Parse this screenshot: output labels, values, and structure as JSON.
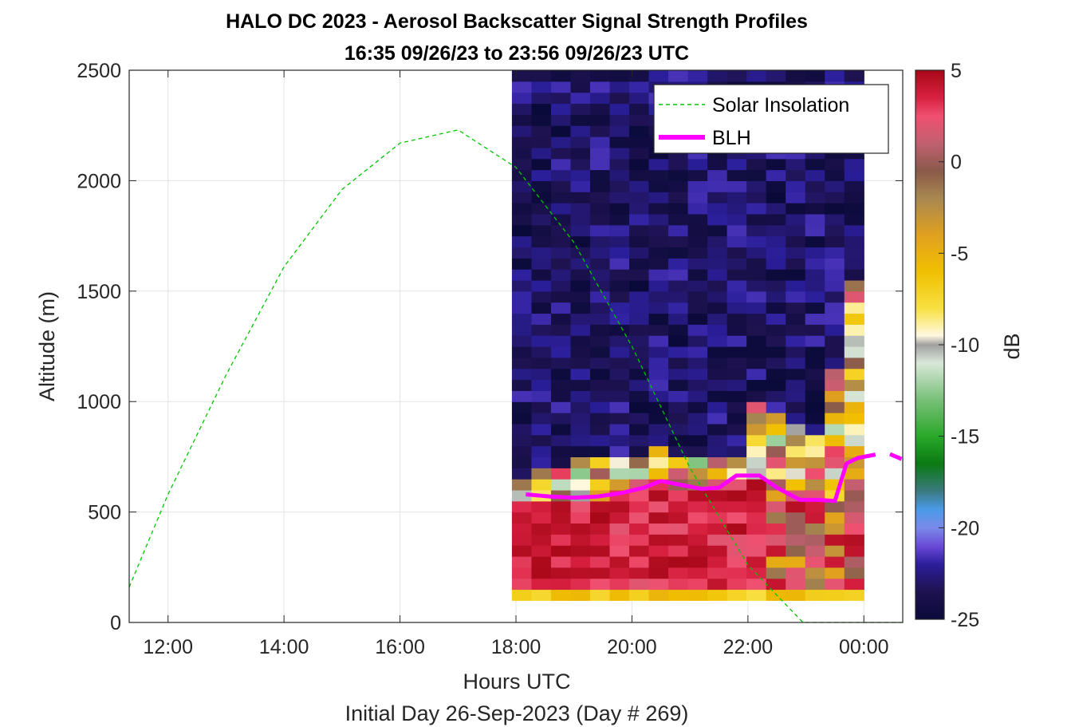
{
  "chart_data": {
    "type": "heatmap",
    "title": "HALO DC 2023 - Aerosol Backscatter Signal Strength Profiles",
    "subtitle": "16:35 09/26/23 to 23:56 09/26/23  UTC",
    "xlabel": "Hours UTC",
    "ylabel": "Altitude (m)",
    "footer": "Initial Day 26-Sep-2023 (Day # 269)",
    "xlim": [
      11.33,
      24.67
    ],
    "ylim": [
      0,
      2500
    ],
    "x_ticks": [
      12,
      14,
      16,
      18,
      20,
      22,
      24
    ],
    "x_tick_labels": [
      "12:00",
      "14:00",
      "16:00",
      "18:00",
      "20:00",
      "22:00",
      "00:00"
    ],
    "y_ticks": [
      0,
      500,
      1000,
      1500,
      2000,
      2500
    ],
    "y_tick_labels": [
      "0",
      "500",
      "1000",
      "1500",
      "2000",
      "2500"
    ],
    "grid": true,
    "legend_position": "top-right",
    "colorbar": {
      "label": "dB",
      "range": [
        -25,
        5
      ],
      "ticks": [
        5,
        0,
        -5,
        -10,
        -15,
        -20,
        -25
      ],
      "tick_labels": [
        "5",
        "0",
        "-5",
        "-10",
        "-15",
        "-20",
        "-25"
      ],
      "stops": [
        [
          -25,
          "#0a0a3a"
        ],
        [
          -23.5,
          "#1e1250"
        ],
        [
          -22,
          "#2a1e9a"
        ],
        [
          -21,
          "#6a4ad8"
        ],
        [
          -20,
          "#7a8ae8"
        ],
        [
          -19,
          "#4a9ae8"
        ],
        [
          -18,
          "#3a7a80"
        ],
        [
          -16.5,
          "#0a7a12"
        ],
        [
          -15,
          "#2aa82a"
        ],
        [
          -13,
          "#78c078"
        ],
        [
          -11,
          "#d8e8d8"
        ],
        [
          -10,
          "#a0a0a0"
        ],
        [
          -9.5,
          "#fff8e0"
        ],
        [
          -8,
          "#f8e040"
        ],
        [
          -6,
          "#f0c000"
        ],
        [
          -4,
          "#e0a020"
        ],
        [
          -2,
          "#a88850"
        ],
        [
          -0.5,
          "#8a5a4a"
        ],
        [
          1,
          "#c06070"
        ],
        [
          2.5,
          "#f05070"
        ],
        [
          3.5,
          "#d82040"
        ],
        [
          5,
          "#a80818"
        ]
      ]
    },
    "heatmap": {
      "x_start": 17.93,
      "x_end": 24.0,
      "y_start": 100,
      "y_end": 2500,
      "dy": 50,
      "blh_hint": "low values above the boundary layer, saturated values below"
    },
    "series": [
      {
        "name": "Solar Insolation",
        "style": "dashed",
        "color": "#00c800",
        "x": [
          11.33,
          12,
          13,
          14,
          15,
          16,
          17,
          18,
          19,
          20,
          21,
          22,
          22.95,
          23.2,
          24,
          24.67
        ],
        "y": [
          160,
          580,
          1120,
          1610,
          1960,
          2170,
          2230,
          2060,
          1720,
          1250,
          700,
          260,
          0,
          0,
          0,
          0
        ]
      },
      {
        "name": "BLH",
        "style": "solid",
        "color": "#ff00ff",
        "x": [
          18.17,
          18.6,
          19.0,
          19.4,
          19.8,
          20.2,
          20.5,
          20.9,
          21.2,
          21.5,
          21.8,
          22.2,
          22.5,
          22.9,
          23.2,
          23.5,
          23.7,
          23.9,
          24.2
        ],
        "y": [
          580,
          570,
          565,
          570,
          585,
          610,
          640,
          620,
          605,
          610,
          665,
          665,
          610,
          555,
          555,
          550,
          720,
          745,
          760
        ]
      },
      {
        "name": "",
        "style": "solid",
        "color": "#ff00ff",
        "x": [
          24.45,
          24.65
        ],
        "y": [
          762,
          740
        ]
      }
    ]
  }
}
